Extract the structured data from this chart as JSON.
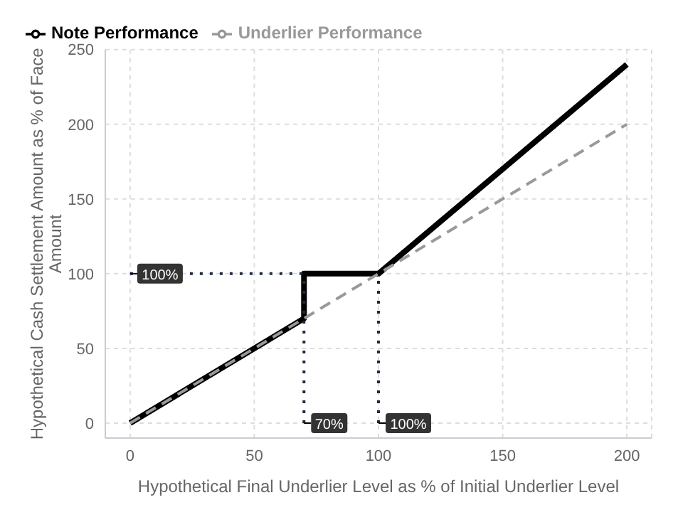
{
  "chart_data": {
    "type": "line",
    "xlabel": "Hypothetical Final Underlier Level as % of Initial Underlier Level",
    "ylabel": "Hypothetical Cash Settlement Amount as % of Face Amount",
    "series": [
      {
        "name": "Note Performance",
        "color": "#000000",
        "x": [
          0,
          70,
          70,
          100,
          200
        ],
        "values": [
          0,
          70,
          100,
          100,
          240
        ],
        "line_style": "solid"
      },
      {
        "name": "Underlier Performance",
        "color": "#999999",
        "x": [
          0,
          200
        ],
        "values": [
          0,
          200
        ],
        "line_style": "dashed"
      },
      {
        "color": "#1f2a44",
        "x": [
          0,
          70
        ],
        "values": [
          100,
          100
        ],
        "line_style": "dotted"
      },
      {
        "color": "#1f2a44",
        "x": [
          70,
          70
        ],
        "values": [
          0,
          100
        ],
        "line_style": "dotted"
      },
      {
        "color": "#1f2a44",
        "x": [
          100,
          100
        ],
        "values": [
          0,
          100
        ],
        "line_style": "dotted"
      }
    ],
    "annotations": [
      {
        "text": "100%",
        "x": 0,
        "y": 100
      },
      {
        "text": "70%",
        "x": 70,
        "y": 0
      },
      {
        "text": "100%",
        "x": 100,
        "y": 0
      }
    ],
    "xlim": [
      -10,
      210
    ],
    "ylim": [
      -10,
      250
    ],
    "xticks": [
      0,
      50,
      100,
      150,
      200
    ],
    "yticks": [
      0,
      50,
      100,
      150,
      200,
      250
    ],
    "grid": true,
    "legend": "top left",
    "marker": "none"
  }
}
